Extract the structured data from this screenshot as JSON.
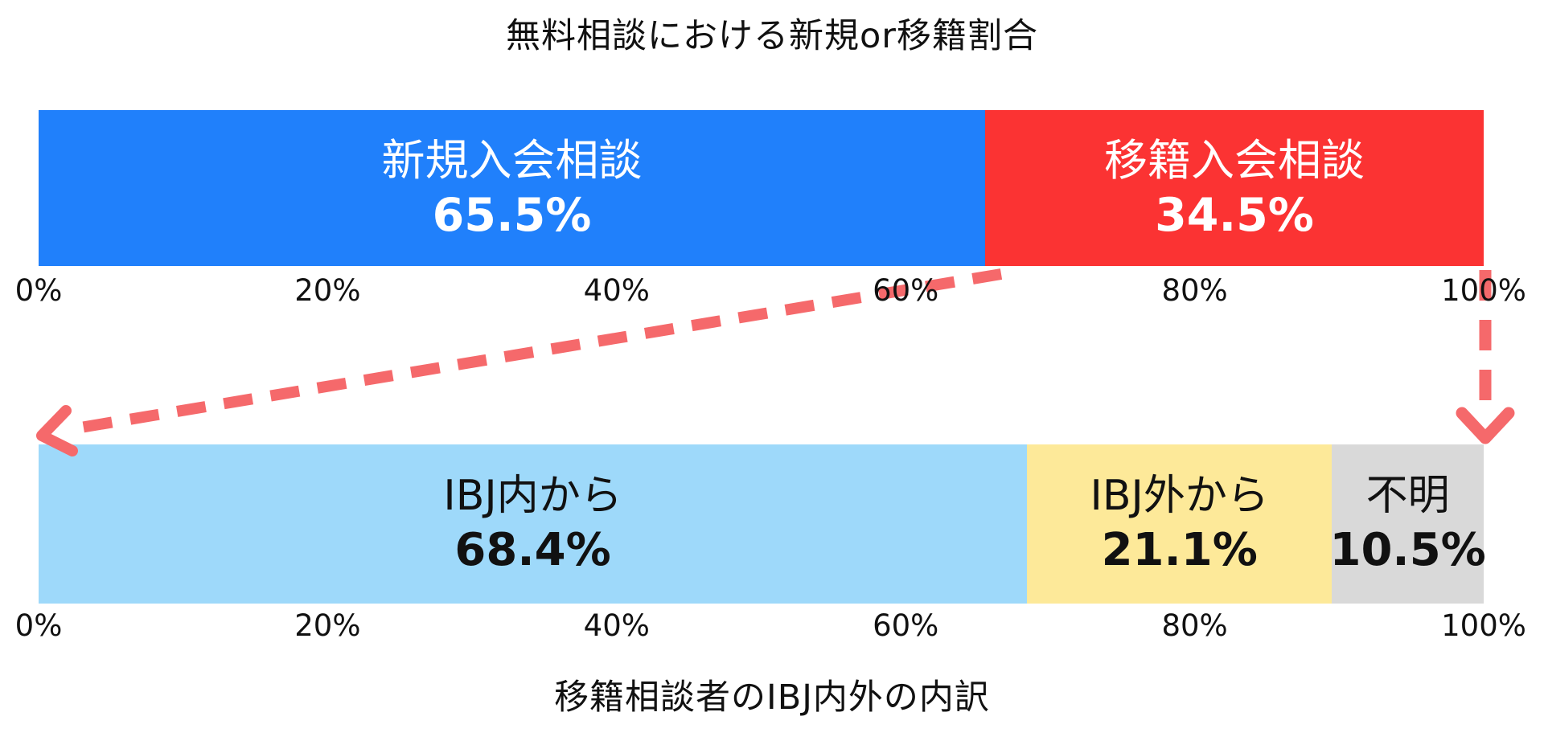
{
  "page_background": "#FFFFFF",
  "annotations": {
    "arrow_color": "#F5696B",
    "arrows": [
      {
        "name": "transfer-segment-to-breakdown-arrow",
        "style": "dashed",
        "from": "top bar 65.5% boundary",
        "to": "bottom bar 0% (left edge)"
      },
      {
        "name": "hundred-percent-edge-arrow",
        "style": "dashed",
        "from": "top bar 100% (right edge)",
        "to": "bottom bar 100% (right edge)"
      }
    ]
  },
  "chart_data": [
    {
      "type": "bar",
      "orientation": "horizontal_stacked",
      "title": "無料相談における新規or移籍割合",
      "title_position": "above",
      "categories": [
        "新規入会相談",
        "移籍入会相談"
      ],
      "values": [
        65.5,
        34.5
      ],
      "segments": [
        {
          "label": "新規入会相談",
          "pct_label": "65.5%",
          "value": 65.5,
          "color": "#2080FB",
          "text_color": "#FFFFFF"
        },
        {
          "label": "移籍入会相談",
          "pct_label": "34.5%",
          "value": 34.5,
          "color": "#FB3333",
          "text_color": "#FFFFFF"
        }
      ],
      "xlim": [
        0,
        100
      ],
      "grid": false,
      "legend": "none",
      "ticks": [
        {
          "label": "0%",
          "pos": 0
        },
        {
          "label": "20%",
          "pos": 20
        },
        {
          "label": "40%",
          "pos": 40
        },
        {
          "label": "60%",
          "pos": 60
        },
        {
          "label": "80%",
          "pos": 80
        },
        {
          "label": "100%",
          "pos": 100
        }
      ]
    },
    {
      "type": "bar",
      "orientation": "horizontal_stacked",
      "title": "移籍相談者のIBJ内外の内訳",
      "title_position": "below",
      "categories": [
        "IBJ内から",
        "IBJ外から",
        "不明"
      ],
      "values": [
        68.4,
        21.1,
        10.5
      ],
      "segments": [
        {
          "label": "IBJ内から",
          "pct_label": "68.4%",
          "value": 68.4,
          "color": "#9ED9FA",
          "text_color": "#111111"
        },
        {
          "label": "IBJ外から",
          "pct_label": "21.1%",
          "value": 21.1,
          "color": "#FDE999",
          "text_color": "#111111"
        },
        {
          "label": "不明",
          "pct_label": "10.5%",
          "value": 10.5,
          "color": "#D9D9D9",
          "text_color": "#111111"
        }
      ],
      "xlim": [
        0,
        100
      ],
      "grid": false,
      "legend": "none",
      "ticks": [
        {
          "label": "0%",
          "pos": 0
        },
        {
          "label": "20%",
          "pos": 20
        },
        {
          "label": "40%",
          "pos": 40
        },
        {
          "label": "60%",
          "pos": 60
        },
        {
          "label": "80%",
          "pos": 80
        },
        {
          "label": "100%",
          "pos": 100
        }
      ]
    }
  ]
}
